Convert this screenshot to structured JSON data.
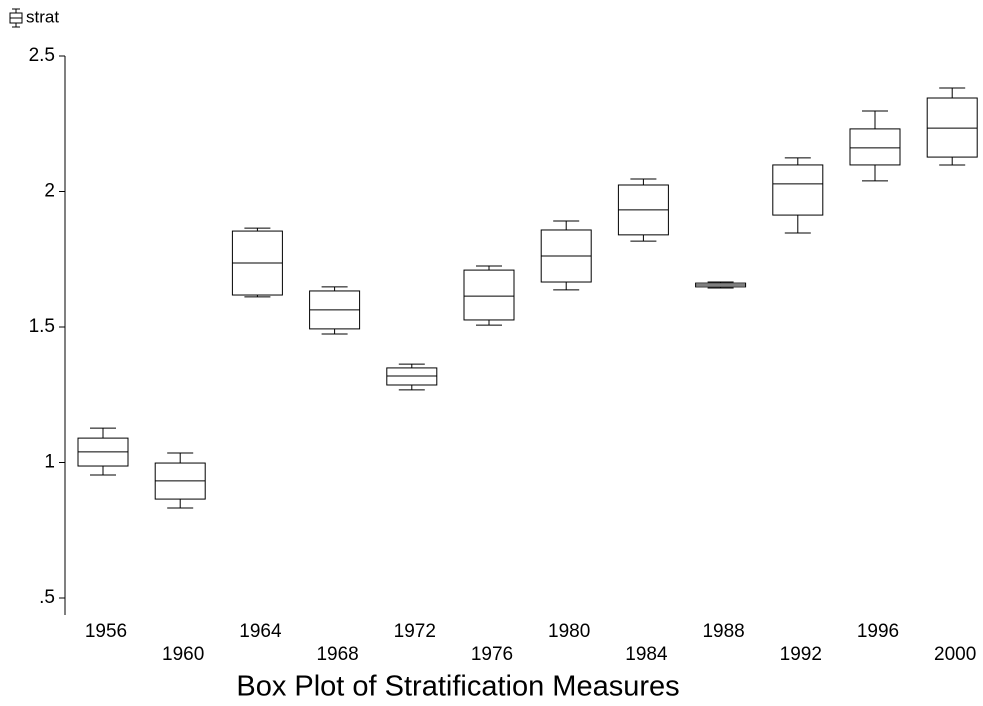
{
  "chart_data": {
    "type": "box",
    "title": "Box Plot of Stratification Measures",
    "categories": [
      "1956",
      "1960",
      "1964",
      "1968",
      "1972",
      "1976",
      "1980",
      "1984",
      "1988",
      "1992",
      "1996",
      "2000"
    ],
    "series": [
      {
        "name": "strat",
        "color": "#000000",
        "whisker_low": [
          0.954,
          0.832,
          1.611,
          1.474,
          1.268,
          1.507,
          1.637,
          1.817,
          1.644,
          1.847,
          2.039,
          2.098
        ],
        "q1": [
          0.987,
          0.865,
          1.618,
          1.493,
          1.286,
          1.526,
          1.666,
          1.84,
          1.648,
          1.913,
          2.098,
          2.127
        ],
        "median": [
          1.039,
          0.932,
          1.736,
          1.563,
          1.319,
          1.614,
          1.762,
          1.932,
          1.655,
          2.028,
          2.161,
          2.234
        ],
        "q3": [
          1.09,
          0.998,
          1.854,
          1.633,
          1.349,
          1.71,
          1.858,
          2.024,
          1.662,
          2.098,
          2.231,
          2.345
        ],
        "whisker_high": [
          1.127,
          1.035,
          1.865,
          1.648,
          1.363,
          1.725,
          1.891,
          2.046,
          1.666,
          2.124,
          2.297,
          2.382
        ]
      }
    ],
    "ylim": [
      0.5,
      2.5
    ],
    "yticks": [
      {
        "value": 0.5,
        "label": ".5"
      },
      1,
      1.5,
      2,
      2.5
    ],
    "legend": "top-left"
  }
}
